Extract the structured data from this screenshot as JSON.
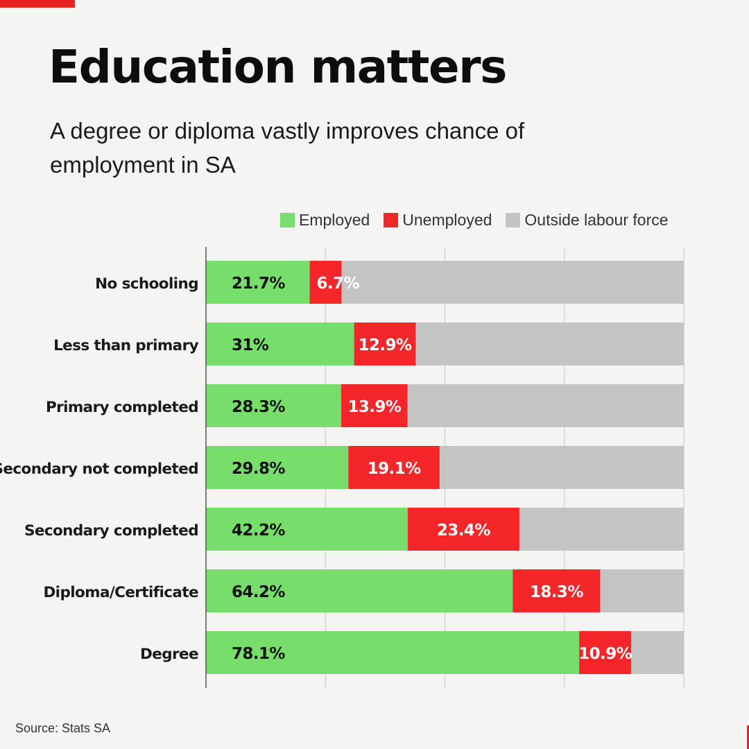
{
  "header": {
    "title": "Education matters",
    "subtitle": "A degree or diploma vastly improves chance of employment in SA"
  },
  "colors": {
    "accent": "#e52421",
    "employed": "#77de6b",
    "unemployed": "#f5262a",
    "outside": "#c4c4c4",
    "background": "#f4f4f2"
  },
  "chart_data": {
    "type": "bar",
    "orientation": "horizontal",
    "stacked": true,
    "categories": [
      "No schooling",
      "Less than primary",
      "Primary completed",
      "Secondary not completed",
      "Secondary completed",
      "Diploma/Certificate",
      "Degree"
    ],
    "series": [
      {
        "name": "Employed",
        "values": [
          21.7,
          31,
          28.3,
          29.8,
          42.2,
          64.2,
          78.1
        ],
        "labels": [
          "21.7%",
          "31%",
          "28.3%",
          "29.8%",
          "42.2%",
          "64.2%",
          "78.1%"
        ]
      },
      {
        "name": "Unemployed",
        "values": [
          6.7,
          12.9,
          13.9,
          19.1,
          23.4,
          18.3,
          10.9
        ],
        "labels": [
          "6.7%",
          "12.9%",
          "13.9%",
          "19.1%",
          "23.4%",
          "18.3%",
          "10.9%"
        ]
      },
      {
        "name": "Outside labour force",
        "values": [
          71.6,
          56.1,
          57.8,
          51.1,
          34.4,
          17.5,
          11.0
        ]
      }
    ],
    "xlim": [
      0,
      100
    ],
    "grid": true,
    "legend_position": "top-right"
  },
  "legend": {
    "employed": "Employed",
    "unemployed": "Unemployed",
    "outside": "Outside labour force"
  },
  "footer": {
    "source": "Source: Stats SA"
  }
}
